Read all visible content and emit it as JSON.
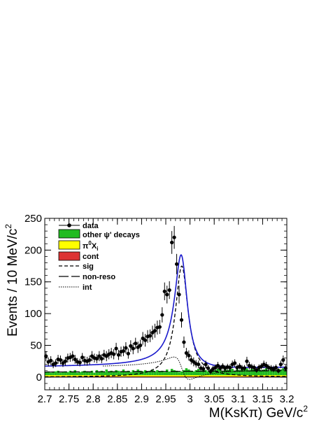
{
  "chart_data": {
    "type": "line",
    "xlabel_main": "M(KsK",
    "xlabel_pi": "π",
    "xlabel_unit": ") GeV/c",
    "xlabel_sup": "2",
    "ylabel_main": "Events / 10 MeV/c",
    "ylabel_sup": "2",
    "xlim": [
      2.7,
      3.2
    ],
    "ylim": [
      -20,
      250
    ],
    "x_ticks": [
      "2.7",
      "2.75",
      "2.8",
      "2.85",
      "2.9",
      "2.95",
      "3",
      "3.05",
      "3.1",
      "3.15",
      "3.2"
    ],
    "y_ticks": [
      "0",
      "50",
      "100",
      "150",
      "200",
      "250"
    ],
    "legend": {
      "data": "data",
      "other": "other ψ' decays",
      "pi0_main": "π",
      "pi0_sup": "0",
      "pi0_X": "X",
      "pi0_sub": "i",
      "cont": "cont",
      "sig": "sig",
      "nonreso": "non-reso",
      "int": "int"
    },
    "colors": {
      "fit": "#1a1acc",
      "other": "#22bb22",
      "pi0": "#ffff00",
      "cont": "#dd3333"
    },
    "data_points": {
      "x": [
        2.7025,
        2.7075,
        2.7125,
        2.7175,
        2.7225,
        2.7275,
        2.7325,
        2.7375,
        2.7425,
        2.7475,
        2.7525,
        2.7575,
        2.7625,
        2.7675,
        2.7725,
        2.7775,
        2.7825,
        2.7875,
        2.7925,
        2.7975,
        2.8025,
        2.8075,
        2.8125,
        2.8175,
        2.8225,
        2.8275,
        2.8325,
        2.8375,
        2.8425,
        2.8475,
        2.8525,
        2.8575,
        2.8625,
        2.8675,
        2.8725,
        2.8775,
        2.8825,
        2.8875,
        2.8925,
        2.8975,
        2.9025,
        2.9075,
        2.9125,
        2.9175,
        2.9225,
        2.9275,
        2.9325,
        2.9375,
        2.9425,
        2.9475,
        2.9525,
        2.9575,
        2.9625,
        2.9675,
        2.9725,
        2.9775,
        2.9825,
        2.9875,
        2.9925,
        2.9975,
        3.0025,
        3.0075,
        3.0125,
        3.0175,
        3.0225,
        3.0275,
        3.0325,
        3.0375,
        3.0425,
        3.0475,
        3.0525,
        3.0575,
        3.0625,
        3.0675,
        3.0725,
        3.0775,
        3.0825,
        3.0875,
        3.0925,
        3.0975,
        3.1025,
        3.1075,
        3.1125,
        3.1175,
        3.1225,
        3.1275,
        3.1325,
        3.1375,
        3.1425,
        3.1475,
        3.1525,
        3.1575,
        3.1625,
        3.1675,
        3.1725,
        3.1775,
        3.1825,
        3.1875,
        3.1925,
        3.1975
      ],
      "y": [
        33,
        24,
        26,
        20,
        22,
        28,
        27,
        22,
        25,
        30,
        31,
        33,
        28,
        24,
        23,
        31,
        26,
        25,
        27,
        33,
        30,
        29,
        33,
        29,
        35,
        33,
        36,
        38,
        36,
        45,
        35,
        40,
        41,
        46,
        37,
        49,
        45,
        53,
        47,
        50,
        61,
        58,
        64,
        65,
        70,
        73,
        78,
        79,
        98,
        135,
        130,
        137,
        212,
        220,
        178,
        130,
        90,
        55,
        38,
        34,
        27,
        24,
        21,
        20,
        14,
        13,
        20,
        14,
        9,
        13,
        15,
        18,
        14,
        17,
        14,
        16,
        15,
        20,
        22,
        15,
        17,
        14,
        14,
        25,
        18,
        16,
        15,
        11,
        15,
        17,
        20,
        18,
        15,
        14,
        13,
        15,
        10,
        20,
        27,
        14
      ],
      "err": [
        8,
        7,
        7,
        6,
        6,
        7,
        7,
        6,
        7,
        7,
        7,
        8,
        7,
        6,
        6,
        7,
        7,
        7,
        7,
        8,
        7,
        7,
        8,
        7,
        8,
        8,
        8,
        8,
        8,
        9,
        8,
        8,
        8,
        9,
        8,
        9,
        9,
        9,
        9,
        9,
        10,
        10,
        10,
        10,
        11,
        11,
        11,
        11,
        12,
        14,
        14,
        14,
        18,
        18,
        16,
        14,
        12,
        9,
        8,
        8,
        7,
        7,
        6,
        6,
        5,
        5,
        6,
        5,
        4,
        5,
        5,
        6,
        5,
        5,
        5,
        5,
        5,
        6,
        6,
        5,
        5,
        5,
        5,
        7,
        6,
        5,
        5,
        4,
        5,
        5,
        6,
        6,
        5,
        5,
        5,
        5,
        4,
        6,
        7,
        5
      ]
    },
    "other_hist": [
      8,
      9,
      7,
      8,
      9,
      10,
      7,
      8,
      9,
      8,
      10,
      8,
      11,
      7,
      8,
      9,
      10,
      9,
      8,
      10,
      7,
      11,
      9,
      10,
      8,
      12,
      9,
      10,
      8,
      11,
      10,
      9,
      12,
      9,
      10,
      8,
      11,
      9,
      12,
      10,
      9,
      11,
      8,
      10,
      12,
      9,
      11,
      9,
      10,
      8,
      12,
      9,
      13,
      11,
      10,
      8,
      9,
      11,
      14,
      12,
      10,
      9,
      11,
      13,
      10,
      12,
      11,
      9,
      12,
      10,
      11,
      13,
      12,
      10,
      14,
      11,
      12,
      13,
      10,
      12,
      11,
      13,
      12,
      14,
      11,
      13,
      12,
      10,
      13,
      11,
      12,
      14,
      11,
      13,
      12,
      10,
      13,
      12,
      14,
      11
    ],
    "pi0_level": 2,
    "cont_level": 1
  }
}
